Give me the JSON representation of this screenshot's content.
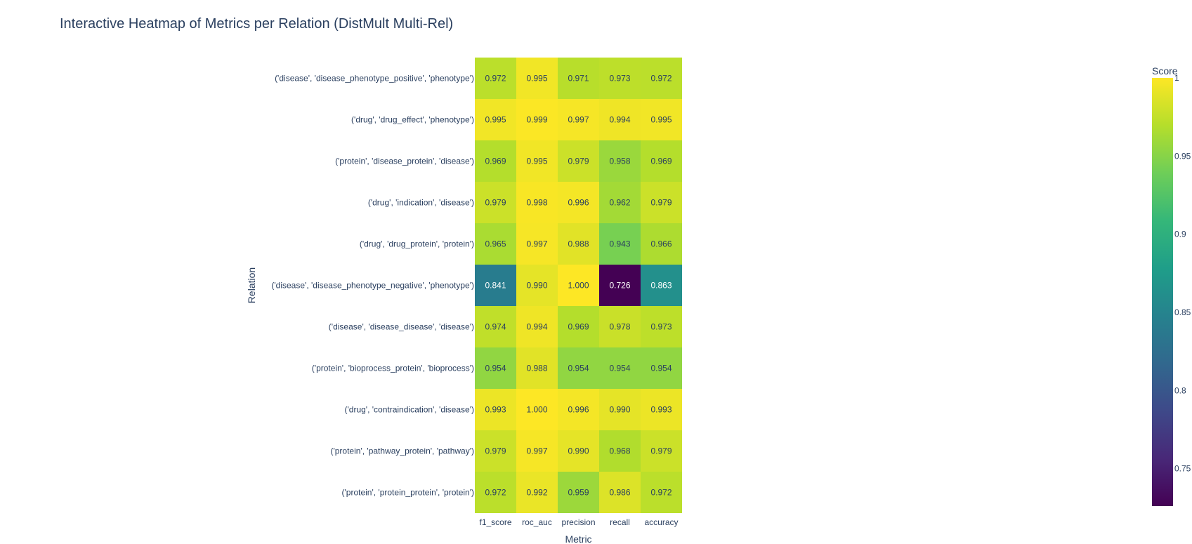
{
  "chart_data": {
    "type": "heatmap",
    "title": "Interactive Heatmap of Metrics per Relation (DistMult Multi-Rel)",
    "xlabel": "Metric",
    "ylabel": "Relation",
    "x": [
      "f1_score",
      "roc_auc",
      "precision",
      "recall",
      "accuracy"
    ],
    "y": [
      "('disease', 'disease_phenotype_positive', 'phenotype')",
      "('drug', 'drug_effect', 'phenotype')",
      "('protein', 'disease_protein', 'disease')",
      "('drug', 'indication', 'disease')",
      "('drug', 'drug_protein', 'protein')",
      "('disease', 'disease_phenotype_negative', 'phenotype')",
      "('disease', 'disease_disease', 'disease')",
      "('protein', 'bioprocess_protein', 'bioprocess')",
      "('drug', 'contraindication', 'disease')",
      "('protein', 'pathway_protein', 'pathway')",
      "('protein', 'protein_protein', 'protein')"
    ],
    "z": [
      [
        0.972,
        0.995,
        0.971,
        0.973,
        0.972
      ],
      [
        0.995,
        0.999,
        0.997,
        0.994,
        0.995
      ],
      [
        0.969,
        0.995,
        0.979,
        0.958,
        0.969
      ],
      [
        0.979,
        0.998,
        0.996,
        0.962,
        0.979
      ],
      [
        0.965,
        0.997,
        0.988,
        0.943,
        0.966
      ],
      [
        0.841,
        0.99,
        1.0,
        0.726,
        0.863
      ],
      [
        0.974,
        0.994,
        0.969,
        0.978,
        0.973
      ],
      [
        0.954,
        0.988,
        0.954,
        0.954,
        0.954
      ],
      [
        0.993,
        1.0,
        0.996,
        0.99,
        0.993
      ],
      [
        0.979,
        0.997,
        0.99,
        0.968,
        0.979
      ],
      [
        0.972,
        0.992,
        0.959,
        0.986,
        0.972
      ]
    ],
    "text_format": "0.000",
    "zlim": [
      0.726,
      1.0
    ],
    "colorscale": "Viridis",
    "colorbar": {
      "title": "Score",
      "tickvals": [
        1,
        0.95,
        0.9,
        0.85,
        0.8,
        0.75
      ],
      "ticktext": [
        "1",
        "0.95",
        "0.9",
        "0.85",
        "0.8",
        "0.75"
      ]
    },
    "colors": {
      "text": "#2a3f5f",
      "background": "#ffffff",
      "viridis": [
        "#440154",
        "#482878",
        "#3e4989",
        "#31688e",
        "#26828e",
        "#1f9e89",
        "#35b779",
        "#6ece58",
        "#b5de2b",
        "#fde725"
      ]
    }
  }
}
